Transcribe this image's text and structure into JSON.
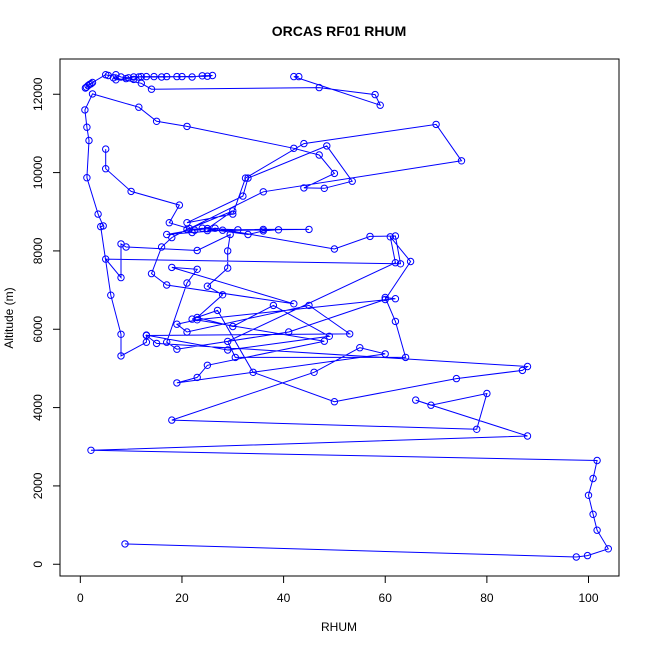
{
  "chart_data": {
    "type": "scatter",
    "title": "ORCAS RF01 RHUM",
    "xlabel": "RHUM",
    "ylabel": "Altitude (m)",
    "xlim": [
      -4,
      106
    ],
    "ylim": [
      -300,
      12900
    ],
    "x_ticks": [
      0,
      20,
      40,
      60,
      80,
      100
    ],
    "y_ticks": [
      0,
      2000,
      4000,
      6000,
      8000,
      10000,
      12000
    ],
    "grid": false,
    "legend": "none",
    "series_color": "#0000ff",
    "point_style": "open-circle",
    "connected": true,
    "series": [
      {
        "points": [
          [
            8.8,
            520
          ],
          [
            97.6,
            185
          ],
          [
            99.8,
            220
          ],
          [
            103.9,
            395
          ],
          [
            101.7,
            870
          ],
          [
            100.9,
            1275
          ],
          [
            100,
            1760
          ],
          [
            100.9,
            2190
          ],
          [
            101.7,
            2650
          ],
          [
            2.1,
            2910
          ],
          [
            88,
            3275
          ],
          [
            66,
            4190
          ],
          [
            69,
            4060
          ],
          [
            80,
            4360
          ],
          [
            78,
            3445
          ],
          [
            18,
            3680
          ],
          [
            46,
            4900
          ],
          [
            55,
            5530
          ],
          [
            60,
            5370
          ],
          [
            19,
            4630
          ],
          [
            23,
            4770
          ],
          [
            25,
            5080
          ],
          [
            48,
            5695
          ],
          [
            22,
            6260
          ],
          [
            27,
            6480
          ],
          [
            34,
            4900
          ],
          [
            50,
            4150
          ],
          [
            74,
            4740
          ],
          [
            87,
            4950
          ],
          [
            88,
            5050
          ],
          [
            15,
            5640
          ],
          [
            13,
            5840
          ],
          [
            53,
            5880
          ],
          [
            45,
            6610
          ],
          [
            21,
            5930
          ],
          [
            19,
            6130
          ],
          [
            23,
            6240
          ],
          [
            62,
            6780
          ],
          [
            60,
            6810
          ],
          [
            62,
            6200
          ],
          [
            64,
            5280
          ],
          [
            30.5,
            5280
          ],
          [
            29,
            5690
          ],
          [
            62,
            7700
          ],
          [
            61,
            8360
          ],
          [
            65,
            7730
          ],
          [
            60,
            6760
          ],
          [
            41,
            5930
          ],
          [
            19,
            5490
          ],
          [
            17,
            5670
          ],
          [
            21,
            7180
          ],
          [
            23,
            7530
          ],
          [
            18,
            7580
          ],
          [
            42,
            6650
          ],
          [
            17,
            7130
          ],
          [
            14,
            7420
          ],
          [
            16,
            8100
          ],
          [
            18,
            8340
          ],
          [
            21,
            8550
          ],
          [
            25,
            8570
          ],
          [
            31,
            8540
          ],
          [
            36,
            8550
          ],
          [
            45,
            8550
          ],
          [
            28,
            8530
          ],
          [
            22,
            8470
          ],
          [
            17,
            8420
          ],
          [
            24,
            8580
          ],
          [
            33,
            8420
          ],
          [
            36,
            8510
          ],
          [
            39,
            8540
          ],
          [
            25,
            8520
          ],
          [
            26.5,
            8580
          ],
          [
            50,
            8050
          ],
          [
            57,
            8370
          ],
          [
            62,
            8380
          ],
          [
            63,
            7670
          ],
          [
            5,
            7790
          ],
          [
            8,
            7320
          ],
          [
            8,
            8180
          ],
          [
            9,
            8100
          ],
          [
            23,
            8010
          ],
          [
            29.5,
            8420
          ],
          [
            29,
            8000
          ],
          [
            29,
            7560
          ],
          [
            25,
            7100
          ],
          [
            28,
            6880
          ],
          [
            23,
            6300
          ],
          [
            30,
            6070
          ],
          [
            38,
            6610
          ],
          [
            49,
            5820
          ],
          [
            29,
            5470
          ],
          [
            13,
            5850
          ],
          [
            13,
            5670
          ],
          [
            8,
            5320
          ],
          [
            8,
            5870
          ],
          [
            6,
            6870
          ],
          [
            4,
            8620
          ],
          [
            4.5,
            8640
          ],
          [
            3.5,
            8940
          ],
          [
            1.3,
            9870
          ],
          [
            1.7,
            10820
          ],
          [
            1.3,
            11160
          ],
          [
            0.9,
            11600
          ],
          [
            2.4,
            12010
          ],
          [
            11.5,
            11670
          ],
          [
            15,
            11310
          ],
          [
            21,
            11180
          ],
          [
            42,
            10620
          ],
          [
            47,
            10450
          ],
          [
            50,
            9980
          ],
          [
            44,
            9610
          ],
          [
            48,
            9600
          ],
          [
            53.5,
            9780
          ],
          [
            48.5,
            10680
          ],
          [
            33,
            9860
          ],
          [
            32,
            9400
          ],
          [
            21,
            8720
          ],
          [
            30,
            8940
          ],
          [
            32.5,
            9860
          ],
          [
            44,
            10740
          ],
          [
            70,
            11230
          ],
          [
            75,
            10300
          ],
          [
            36,
            9510
          ],
          [
            21.5,
            8570
          ],
          [
            30,
            9020
          ],
          [
            25,
            8570
          ],
          [
            22.5,
            8530
          ],
          [
            17.5,
            8720
          ],
          [
            19.5,
            9170
          ],
          [
            10,
            9520
          ],
          [
            5,
            10100
          ],
          [
            5,
            10600
          ]
        ]
      }
    ],
    "upper_points": [
      [
        1,
        12160
      ],
      [
        1.2,
        12180
      ],
      [
        1.5,
        12220
      ],
      [
        1.8,
        12250
      ],
      [
        2.1,
        12270
      ],
      [
        2.4,
        12300
      ],
      [
        5,
        12500
      ],
      [
        5.5,
        12480
      ],
      [
        7,
        12500
      ],
      [
        8,
        12440
      ],
      [
        9.5,
        12420
      ],
      [
        10.5,
        12440
      ],
      [
        12,
        12450
      ],
      [
        13,
        12450
      ],
      [
        14.5,
        12450
      ],
      [
        17,
        12450
      ],
      [
        19,
        12450
      ],
      [
        25,
        12460
      ],
      [
        26,
        12480
      ],
      [
        24,
        12470
      ],
      [
        22,
        12440
      ],
      [
        20,
        12450
      ],
      [
        16,
        12440
      ],
      [
        11.5,
        12440
      ],
      [
        10.5,
        12380
      ],
      [
        9,
        12400
      ],
      [
        7,
        12370
      ],
      [
        6.5,
        12420
      ],
      [
        12,
        12280
      ],
      [
        14,
        12130
      ],
      [
        47,
        12170
      ],
      [
        58,
        11990
      ],
      [
        59,
        11720
      ],
      [
        42,
        12450
      ],
      [
        43,
        12450
      ]
    ]
  }
}
